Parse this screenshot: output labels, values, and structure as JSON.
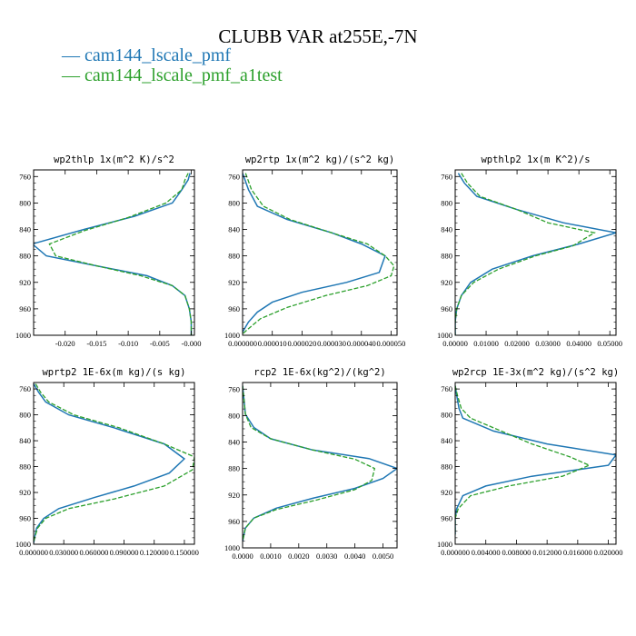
{
  "title": "CLUBB VAR at255E,-7N",
  "legend": [
    {
      "label": "cam144_lscale_pmf",
      "color": "#1f77b4",
      "marker": "—"
    },
    {
      "label": "cam144_lscale_pmf_a1test",
      "color": "#2ca02c",
      "marker": "—"
    }
  ],
  "chart_data": [
    {
      "type": "line",
      "title": "wp2thlp   1x(m^2 K)/s^2",
      "xlim": [
        -0.025,
        0.0005
      ],
      "xticks": [
        "-0.020",
        "-0.015",
        "-0.010",
        "-0.005",
        "-0.000"
      ],
      "xtick_values": [
        -0.02,
        -0.015,
        -0.01,
        -0.005,
        0.0
      ],
      "ylim": [
        1000,
        750
      ],
      "yticks": [
        760,
        800,
        840,
        880,
        920,
        960,
        1000
      ],
      "grid": false,
      "series": [
        {
          "name": "cam144_lscale_pmf",
          "color": "#1f77b4",
          "dashed": false,
          "points": [
            [
              -0.0002,
              755
            ],
            [
              -0.0005,
              765
            ],
            [
              -0.0015,
              780
            ],
            [
              -0.003,
              800
            ],
            [
              -0.009,
              820
            ],
            [
              -0.017,
              840
            ],
            [
              -0.0252,
              862
            ],
            [
              -0.023,
              880
            ],
            [
              -0.015,
              895
            ],
            [
              -0.007,
              910
            ],
            [
              -0.003,
              925
            ],
            [
              -0.001,
              940
            ],
            [
              -0.0003,
              960
            ],
            [
              0.0,
              980
            ],
            [
              0.0,
              1000
            ]
          ]
        },
        {
          "name": "cam144_lscale_pmf_a1test",
          "color": "#2ca02c",
          "dashed": true,
          "points": [
            [
              -0.0005,
              755
            ],
            [
              -0.001,
              765
            ],
            [
              -0.0015,
              780
            ],
            [
              -0.004,
              800
            ],
            [
              -0.01,
              822
            ],
            [
              -0.017,
              842
            ],
            [
              -0.0225,
              862
            ],
            [
              -0.0215,
              880
            ],
            [
              -0.015,
              895
            ],
            [
              -0.008,
              910
            ],
            [
              -0.003,
              925
            ],
            [
              -0.001,
              940
            ],
            [
              -0.0003,
              960
            ],
            [
              0.0,
              980
            ],
            [
              0.0,
              1000
            ]
          ]
        }
      ]
    },
    {
      "type": "line",
      "title": "wp2rtp   1x(m^2 kg)/(s^2 kg)",
      "xlim": [
        0.0,
        5.2e-05
      ],
      "xticks": [
        "0.000000",
        "0.000010",
        "0.000020",
        "0.000030",
        "0.000040",
        "0.000050"
      ],
      "xtick_values": [
        0.0,
        1e-05,
        2e-05,
        3e-05,
        4e-05,
        5e-05
      ],
      "ylim": [
        1000,
        750
      ],
      "yticks": [
        760,
        800,
        840,
        880,
        920,
        960,
        1000
      ],
      "grid": false,
      "series": [
        {
          "name": "cam144_lscale_pmf",
          "color": "#1f77b4",
          "dashed": false,
          "points": [
            [
              0.0,
              755
            ],
            [
              2e-06,
              780
            ],
            [
              5e-06,
              805
            ],
            [
              1.5e-05,
              825
            ],
            [
              3e-05,
              845
            ],
            [
              4e-05,
              862
            ],
            [
              4.8e-05,
              880
            ],
            [
              4.6e-05,
              905
            ],
            [
              3.5e-05,
              920
            ],
            [
              2e-05,
              935
            ],
            [
              1e-05,
              950
            ],
            [
              5e-06,
              965
            ],
            [
              2e-06,
              980
            ],
            [
              0.0,
              995
            ]
          ]
        },
        {
          "name": "cam144_lscale_pmf_a1test",
          "color": "#2ca02c",
          "dashed": true,
          "points": [
            [
              1e-06,
              755
            ],
            [
              3e-06,
              780
            ],
            [
              7e-06,
              805
            ],
            [
              1.6e-05,
              825
            ],
            [
              3e-05,
              845
            ],
            [
              4.2e-05,
              862
            ],
            [
              4.8e-05,
              880
            ],
            [
              5.1e-05,
              895
            ],
            [
              5e-05,
              910
            ],
            [
              4.2e-05,
              925
            ],
            [
              2.8e-05,
              940
            ],
            [
              1.5e-05,
              958
            ],
            [
              6e-06,
              975
            ],
            [
              2e-06,
              990
            ],
            [
              0.0,
              998
            ]
          ]
        }
      ]
    },
    {
      "type": "line",
      "title": "wpthlp2   1x(m K^2)/s",
      "xlim": [
        0.0,
        0.052
      ],
      "xticks": [
        "0.00000",
        "0.01000",
        "0.02000",
        "0.03000",
        "0.04000",
        "0.05000"
      ],
      "xtick_values": [
        0.0,
        0.01,
        0.02,
        0.03,
        0.04,
        0.05
      ],
      "ylim": [
        1000,
        750
      ],
      "yticks": [
        760,
        800,
        840,
        880,
        920,
        960,
        1000
      ],
      "grid": false,
      "series": [
        {
          "name": "cam144_lscale_pmf",
          "color": "#1f77b4",
          "dashed": false,
          "points": [
            [
              0.001,
              755
            ],
            [
              0.003,
              770
            ],
            [
              0.007,
              790
            ],
            [
              0.02,
              810
            ],
            [
              0.035,
              830
            ],
            [
              0.052,
              845
            ],
            [
              0.04,
              862
            ],
            [
              0.025,
              880
            ],
            [
              0.012,
              900
            ],
            [
              0.005,
              920
            ],
            [
              0.002,
              940
            ],
            [
              0.0005,
              960
            ],
            [
              0.0,
              980
            ],
            [
              0.0,
              1000
            ]
          ]
        },
        {
          "name": "cam144_lscale_pmf_a1test",
          "color": "#2ca02c",
          "dashed": true,
          "points": [
            [
              0.002,
              755
            ],
            [
              0.004,
              770
            ],
            [
              0.008,
              790
            ],
            [
              0.02,
              810
            ],
            [
              0.03,
              830
            ],
            [
              0.045,
              845
            ],
            [
              0.038,
              865
            ],
            [
              0.026,
              880
            ],
            [
              0.014,
              900
            ],
            [
              0.006,
              920
            ],
            [
              0.002,
              940
            ],
            [
              0.0005,
              960
            ],
            [
              0.0,
              980
            ],
            [
              0.0,
              1000
            ]
          ]
        }
      ]
    },
    {
      "type": "line",
      "title": "wprtp2   1E-6x(m kg)/(s kg)",
      "xlim": [
        0.0,
        0.16
      ],
      "xticks": [
        "0.000000",
        "0.030000",
        "0.060000",
        "0.090000",
        "0.120000",
        "0.150000"
      ],
      "xtick_values": [
        0.0,
        0.03,
        0.06,
        0.09,
        0.12,
        0.15
      ],
      "ylim": [
        1000,
        750
      ],
      "yticks": [
        760,
        800,
        840,
        880,
        920,
        960,
        1000
      ],
      "grid": false,
      "series": [
        {
          "name": "cam144_lscale_pmf",
          "color": "#1f77b4",
          "dashed": false,
          "points": [
            [
              0.0,
              752
            ],
            [
              0.005,
              765
            ],
            [
              0.012,
              780
            ],
            [
              0.035,
              800
            ],
            [
              0.08,
              820
            ],
            [
              0.13,
              845
            ],
            [
              0.15,
              868
            ],
            [
              0.135,
              890
            ],
            [
              0.1,
              910
            ],
            [
              0.06,
              928
            ],
            [
              0.025,
              945
            ],
            [
              0.01,
              960
            ],
            [
              0.003,
              975
            ],
            [
              0.001,
              990
            ],
            [
              0.0,
              998
            ]
          ]
        },
        {
          "name": "cam144_lscale_pmf_a1test",
          "color": "#2ca02c",
          "dashed": true,
          "points": [
            [
              0.002,
              752
            ],
            [
              0.007,
              765
            ],
            [
              0.015,
              780
            ],
            [
              0.04,
              800
            ],
            [
              0.085,
              820
            ],
            [
              0.13,
              845
            ],
            [
              0.16,
              865
            ],
            [
              0.158,
              885
            ],
            [
              0.13,
              910
            ],
            [
              0.08,
              930
            ],
            [
              0.035,
              945
            ],
            [
              0.012,
              960
            ],
            [
              0.004,
              975
            ],
            [
              0.001,
              990
            ],
            [
              0.0,
              998
            ]
          ]
        }
      ]
    },
    {
      "type": "line",
      "title": "rcp2   1E-6x(kg^2)/(kg^2)",
      "xlim": [
        0.0,
        0.0055
      ],
      "xticks": [
        "0.0000",
        "0.0010",
        "0.0020",
        "0.0030",
        "0.0040",
        "0.0050"
      ],
      "xtick_values": [
        0.0,
        0.001,
        0.002,
        0.003,
        0.004,
        0.005
      ],
      "ylim": [
        1000,
        750
      ],
      "yticks": [
        760,
        800,
        840,
        880,
        920,
        960,
        1000
      ],
      "grid": false,
      "series": [
        {
          "name": "cam144_lscale_pmf",
          "color": "#1f77b4",
          "dashed": false,
          "points": [
            [
              0.0,
              755
            ],
            [
              5e-05,
              775
            ],
            [
              0.0001,
              798
            ],
            [
              0.0004,
              818
            ],
            [
              0.001,
              835
            ],
            [
              0.0025,
              852
            ],
            [
              0.0045,
              865
            ],
            [
              0.0055,
              880
            ],
            [
              0.005,
              895
            ],
            [
              0.004,
              910
            ],
            [
              0.0025,
              925
            ],
            [
              0.0012,
              940
            ],
            [
              0.0004,
              955
            ],
            [
              0.0001,
              970
            ],
            [
              0.0,
              990
            ]
          ]
        },
        {
          "name": "cam144_lscale_pmf_a1test",
          "color": "#2ca02c",
          "dashed": true,
          "points": [
            [
              0.0,
              755
            ],
            [
              5e-05,
              775
            ],
            [
              0.0001,
              798
            ],
            [
              0.0003,
              818
            ],
            [
              0.001,
              835
            ],
            [
              0.0025,
              852
            ],
            [
              0.004,
              866
            ],
            [
              0.0047,
              880
            ],
            [
              0.0046,
              898
            ],
            [
              0.004,
              912
            ],
            [
              0.0026,
              928
            ],
            [
              0.0012,
              942
            ],
            [
              0.0004,
              955
            ],
            [
              0.0001,
              970
            ],
            [
              0.0,
              990
            ]
          ]
        }
      ]
    },
    {
      "type": "line",
      "title": "wp2rcp   1E-3x(m^2 kg)/(s^2 kg)",
      "xlim": [
        0.0,
        0.021
      ],
      "xticks": [
        "0.000000",
        "0.004000",
        "0.008000",
        "0.012000",
        "0.016000",
        "0.020000"
      ],
      "xtick_values": [
        0.0,
        0.004,
        0.008,
        0.012,
        0.016,
        0.02
      ],
      "ylim": [
        1000,
        750
      ],
      "yticks": [
        760,
        800,
        840,
        880,
        920,
        960,
        1000
      ],
      "grid": false,
      "series": [
        {
          "name": "cam144_lscale_pmf",
          "color": "#1f77b4",
          "dashed": false,
          "points": [
            [
              0.0,
              755
            ],
            [
              0.0002,
              770
            ],
            [
              0.0005,
              790
            ],
            [
              0.001,
              805
            ],
            [
              0.005,
              825
            ],
            [
              0.012,
              845
            ],
            [
              0.021,
              862
            ],
            [
              0.02,
              878
            ],
            [
              0.01,
              895
            ],
            [
              0.004,
              910
            ],
            [
              0.001,
              925
            ],
            [
              0.0002,
              945
            ],
            [
              0.0,
              960
            ],
            [
              0.0,
              985
            ]
          ]
        },
        {
          "name": "cam144_lscale_pmf_a1test",
          "color": "#2ca02c",
          "dashed": true,
          "points": [
            [
              0.0,
              755
            ],
            [
              0.0003,
              770
            ],
            [
              0.0008,
              790
            ],
            [
              0.002,
              805
            ],
            [
              0.006,
              825
            ],
            [
              0.01,
              845
            ],
            [
              0.015,
              865
            ],
            [
              0.0175,
              878
            ],
            [
              0.014,
              895
            ],
            [
              0.007,
              910
            ],
            [
              0.002,
              925
            ],
            [
              0.0004,
              945
            ],
            [
              0.0,
              960
            ],
            [
              0.0,
              985
            ]
          ]
        }
      ]
    }
  ]
}
